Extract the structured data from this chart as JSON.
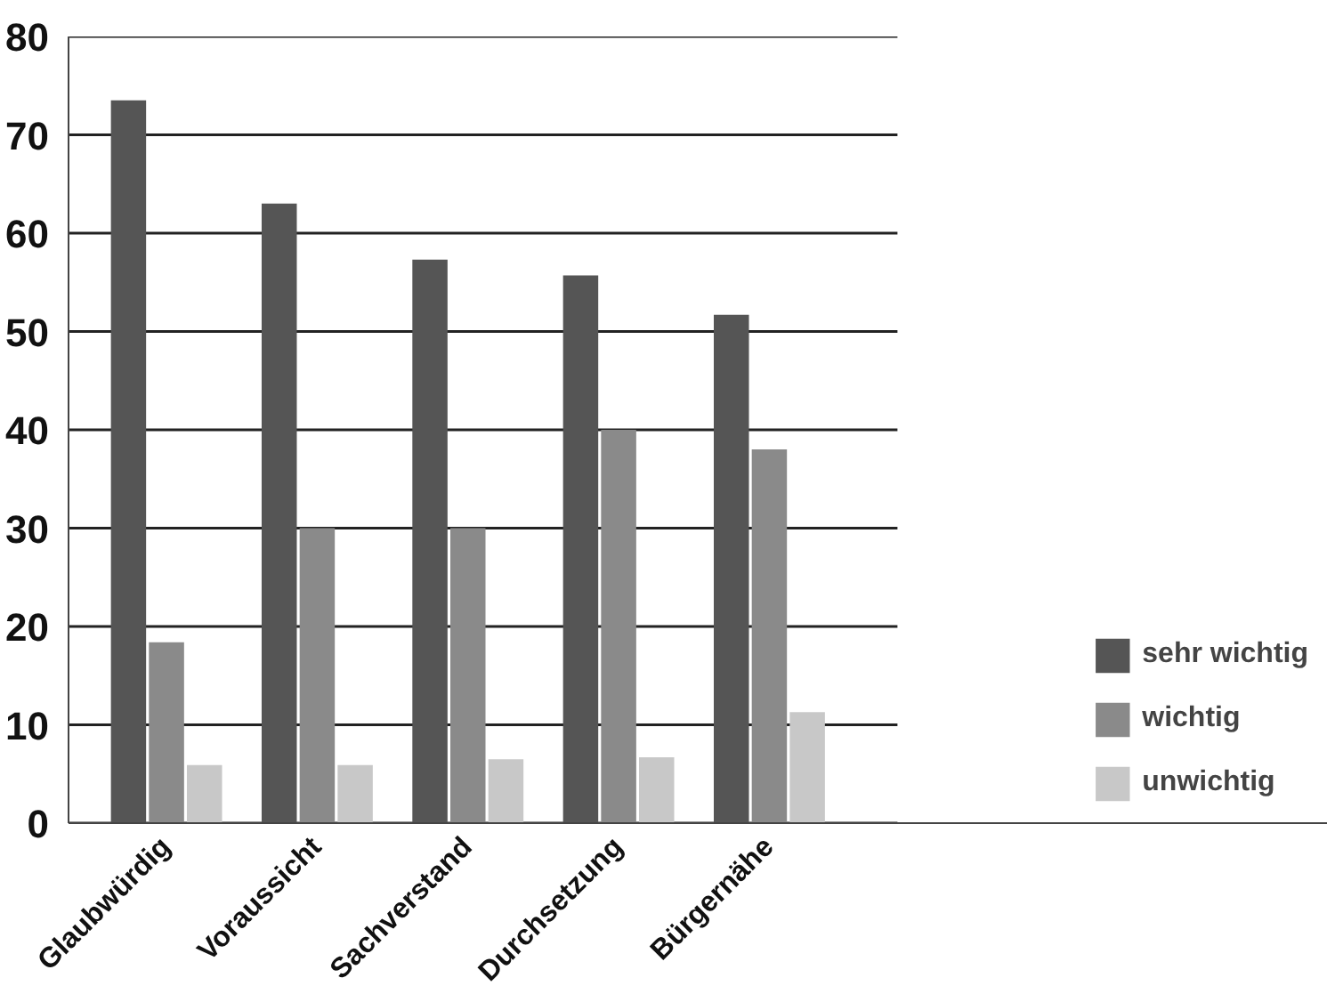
{
  "chart_data": {
    "type": "bar",
    "categories": [
      "Glaubwürdig",
      "Voraussicht",
      "Sachverstand",
      "Durchsetzung",
      "Bürgernähe"
    ],
    "series": [
      {
        "name": "sehr wichtig",
        "color": "#555555",
        "values": [
          73.5,
          63,
          57.3,
          55.7,
          51.7
        ]
      },
      {
        "name": "wichtig",
        "color": "#8a8a8a",
        "values": [
          18.4,
          30,
          30,
          40,
          38
        ]
      },
      {
        "name": "unwichtig",
        "color": "#c8c8c8",
        "values": [
          5.9,
          5.9,
          6.5,
          6.7,
          11.3
        ]
      }
    ],
    "ylim": [
      0,
      80
    ],
    "yticks": [
      0,
      10,
      20,
      30,
      40,
      50,
      60,
      70,
      80
    ],
    "grid": "y",
    "legend": "bottom right"
  }
}
